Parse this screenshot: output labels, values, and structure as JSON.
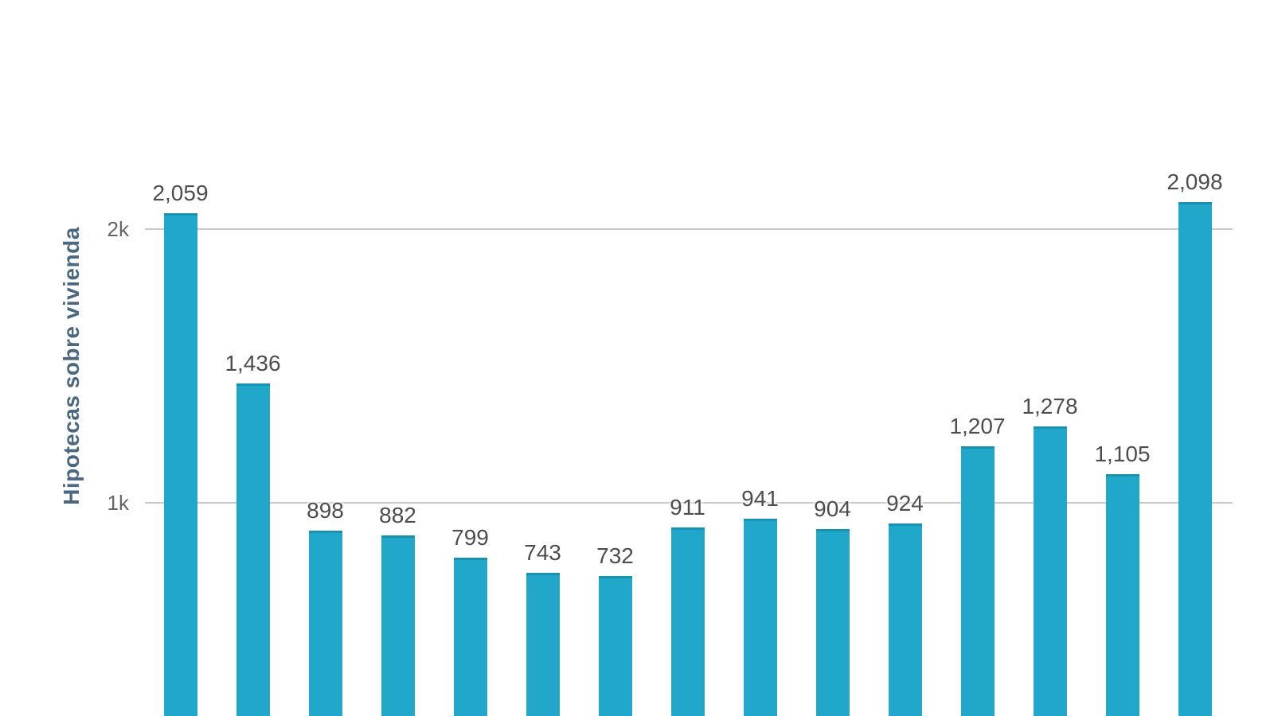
{
  "chart_data": {
    "type": "bar",
    "title": "",
    "ylabel": "Hipotecas sobre vivienda",
    "values": [
      2059,
      1436,
      898,
      882,
      799,
      743,
      732,
      911,
      941,
      904,
      924,
      1207,
      1278,
      1105,
      2098
    ],
    "labels": [
      "2,059",
      "1,436",
      "898",
      "882",
      "799",
      "743",
      "732",
      "911",
      "941",
      "904",
      "924",
      "1,207",
      "1,278",
      "1,105",
      "2,098"
    ],
    "yticks": [
      {
        "value": 1000,
        "label": "1k"
      },
      {
        "value": 2000,
        "label": "2k"
      }
    ],
    "grid": "horizontal",
    "legend": "none",
    "x_axis_labels_visible": false,
    "colors": {
      "bar": "#20a7c9",
      "gridline": "#c9c9c9",
      "tick_label": "#666666",
      "data_label": "#4d4d4d",
      "axis_title": "#4a6981",
      "background": "#ffffff"
    }
  }
}
